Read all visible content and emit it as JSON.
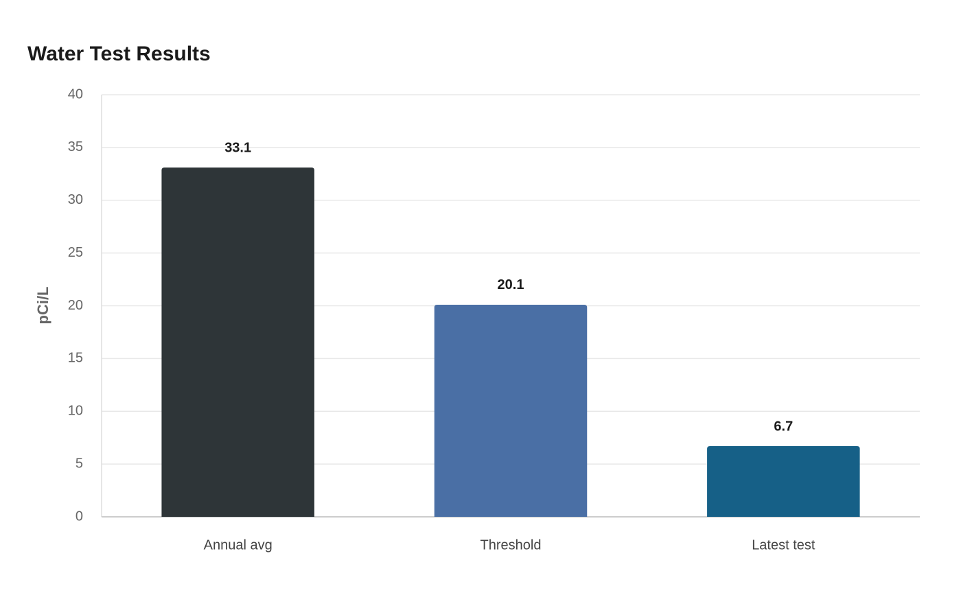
{
  "chart_data": {
    "type": "bar",
    "title": "Water Test Results",
    "y_label": "pCi/L",
    "categories": [
      "Annual avg",
      "Threshold",
      "Latest test"
    ],
    "values": [
      33.1,
      20.1,
      6.7
    ],
    "colors": [
      "#2e3538",
      "#4a6fa5",
      "#166087"
    ],
    "ylim": [
      0,
      40
    ],
    "yticks": [
      0,
      5,
      10,
      15,
      20,
      25,
      30,
      35,
      40
    ],
    "grid": true
  }
}
